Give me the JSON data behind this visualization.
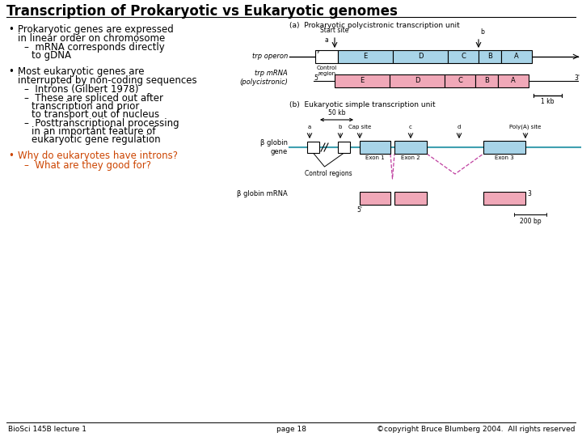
{
  "title": "Transcription of Prokaryotic vs Eukaryotic genomes",
  "background_color": "#ffffff",
  "title_fontsize": 12,
  "bullet3_color": "#cc4400",
  "footer_left": "BioSci 145B lecture 1",
  "footer_mid": "page 18",
  "footer_right": "©copyright Bruce Blumberg 2004.  All rights reserved",
  "footer_fontsize": 6.5,
  "text_fontsize": 8.5,
  "diagram_label_a": "(a)  Prokaryotic polycistronic transcription unit",
  "diagram_label_b": "(b)  Eukaryotic simple transcription unit",
  "blue_color": "#a8d4e8",
  "pink_color": "#f0a8b8",
  "teal_color": "#40a0b0",
  "diagram_text_fontsize": 6.0
}
